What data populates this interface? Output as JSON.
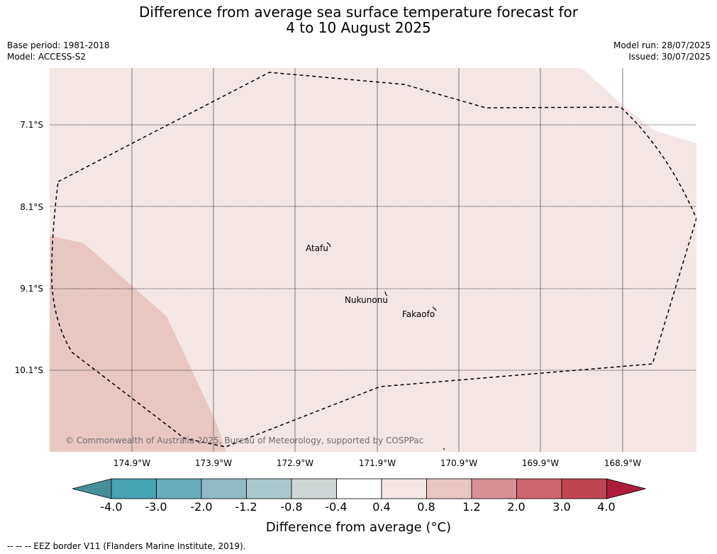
{
  "title": {
    "line1": "Difference from average sea surface temperature forecast for",
    "line2": "4 to 10 August 2025"
  },
  "meta": {
    "base_period": "Base period: 1981-2018",
    "model": "Model: ACCESS-S2",
    "model_run": "Model run: 28/07/2025",
    "issued": "Issued: 30/07/2025"
  },
  "map": {
    "latitude_labels": [
      "7.1°S",
      "8.1°S",
      "9.1°S",
      "10.1°S"
    ],
    "longitude_labels": [
      "174.9°W",
      "173.9°W",
      "172.9°W",
      "171.9°W",
      "170.9°W",
      "169.9°W",
      "168.9°W"
    ],
    "places": [
      "Atafu",
      "Nukunonu",
      "Fakaofo"
    ],
    "copyright": "© Commonwealth of Australia 2025, Bureau of Meteorology, supported by COSPPac",
    "colors": {
      "anomaly_0_4_to_0_8": "#f4e6e5",
      "anomaly_0_8_to_1_2": "#e8c7c3",
      "eez_border": "#000000",
      "grid_lines": "#7a7a7a"
    }
  },
  "colorbar": {
    "ticks": [
      "-4.0",
      "-3.0",
      "-2.0",
      "-1.2",
      "-0.8",
      "-0.4",
      "0.4",
      "0.8",
      "1.2",
      "2.0",
      "3.0",
      "4.0"
    ],
    "colors": [
      "#468e98",
      "#45a3b2",
      "#69acbb",
      "#8fb9c3",
      "#aac8cc",
      "#d0d6d5",
      "#ffffff",
      "#f4e6e5",
      "#e8c7c3",
      "#d69096",
      "#cd6670",
      "#c04553",
      "#ae1c3c"
    ],
    "label": "Difference from average (°C)"
  },
  "legend_note": "--  --  -- EEZ border V11 (Flanders Marine Institute, 2019)."
}
